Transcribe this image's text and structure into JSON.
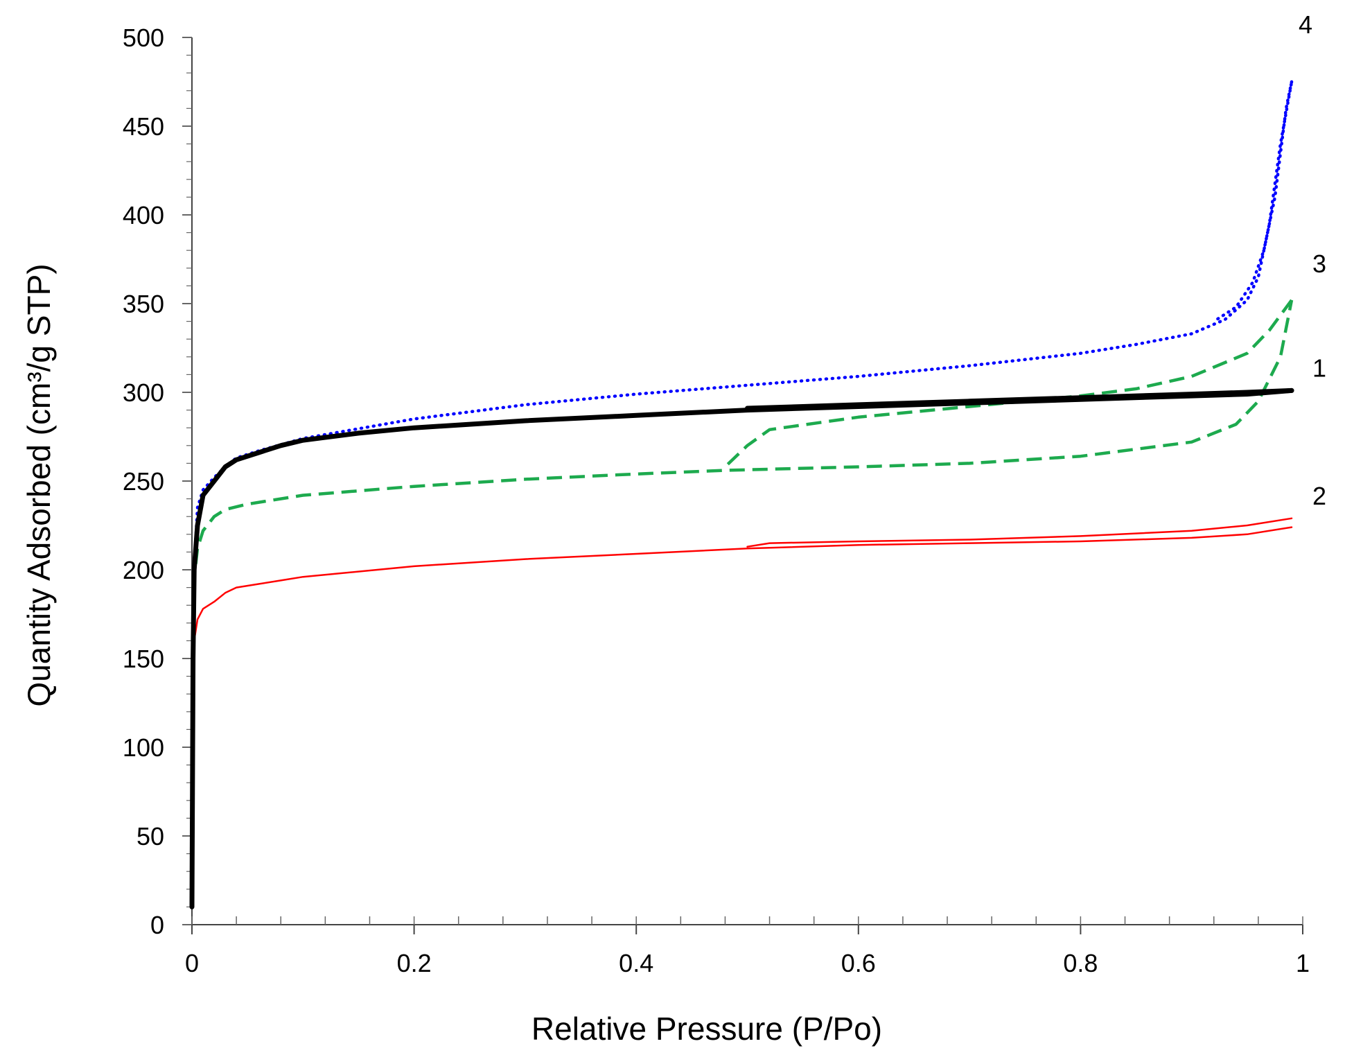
{
  "chart_data": {
    "type": "line",
    "title": "",
    "xlabel": "Relative Pressure (P/Po)",
    "ylabel": "Quantity Adsorbed (cm³/g STP)",
    "xlim": [
      0,
      1
    ],
    "ylim": [
      0,
      500
    ],
    "xticks": [
      0,
      0.2,
      0.4,
      0.6,
      0.8,
      1
    ],
    "xtick_labels": [
      "0",
      "0.2",
      "0.4",
      "0.6",
      "0.8",
      "1"
    ],
    "yticks": [
      0,
      50,
      100,
      150,
      200,
      250,
      300,
      350,
      400,
      450,
      500
    ],
    "ytick_labels": [
      "0",
      "50",
      "100",
      "150",
      "200",
      "250",
      "300",
      "350",
      "400",
      "450",
      "500"
    ],
    "x_minor_step": 0.04,
    "y_minor_step": 10,
    "grid": false,
    "legend": "none",
    "series": [
      {
        "name": "1",
        "label": "1",
        "color": "#000000",
        "style": "solid-thick",
        "adsorption": [
          [
            0.0,
            10
          ],
          [
            0.001,
            150
          ],
          [
            0.002,
            200
          ],
          [
            0.005,
            225
          ],
          [
            0.01,
            242
          ],
          [
            0.02,
            250
          ],
          [
            0.03,
            258
          ],
          [
            0.04,
            262
          ],
          [
            0.06,
            266
          ],
          [
            0.08,
            270
          ],
          [
            0.1,
            273
          ],
          [
            0.15,
            277
          ],
          [
            0.2,
            280
          ],
          [
            0.3,
            284
          ],
          [
            0.4,
            287
          ],
          [
            0.5,
            290
          ],
          [
            0.6,
            292
          ],
          [
            0.7,
            294
          ],
          [
            0.8,
            296
          ],
          [
            0.9,
            298
          ],
          [
            0.95,
            299
          ],
          [
            0.99,
            301
          ]
        ],
        "desorption": [
          [
            0.99,
            301
          ],
          [
            0.95,
            300
          ],
          [
            0.9,
            299
          ],
          [
            0.8,
            297
          ],
          [
            0.7,
            295
          ],
          [
            0.6,
            293
          ],
          [
            0.55,
            292
          ],
          [
            0.5,
            291
          ]
        ]
      },
      {
        "name": "2",
        "label": "2",
        "color": "#ff0000",
        "style": "solid-thin",
        "adsorption": [
          [
            0.0,
            10
          ],
          [
            0.001,
            120
          ],
          [
            0.002,
            160
          ],
          [
            0.005,
            172
          ],
          [
            0.01,
            178
          ],
          [
            0.02,
            182
          ],
          [
            0.03,
            187
          ],
          [
            0.04,
            190
          ],
          [
            0.06,
            192
          ],
          [
            0.08,
            194
          ],
          [
            0.1,
            196
          ],
          [
            0.2,
            202
          ],
          [
            0.3,
            206
          ],
          [
            0.4,
            209
          ],
          [
            0.5,
            212
          ],
          [
            0.6,
            214
          ],
          [
            0.7,
            215
          ],
          [
            0.8,
            216
          ],
          [
            0.9,
            218
          ],
          [
            0.95,
            220
          ],
          [
            0.99,
            224
          ]
        ],
        "desorption": [
          [
            0.99,
            229
          ],
          [
            0.95,
            225
          ],
          [
            0.9,
            222
          ],
          [
            0.8,
            219
          ],
          [
            0.7,
            217
          ],
          [
            0.6,
            216
          ],
          [
            0.52,
            215
          ],
          [
            0.5,
            213
          ]
        ]
      },
      {
        "name": "3",
        "label": "3",
        "color": "#1daa4e",
        "style": "dashed",
        "adsorption": [
          [
            0.0,
            10
          ],
          [
            0.001,
            150
          ],
          [
            0.002,
            195
          ],
          [
            0.005,
            212
          ],
          [
            0.01,
            222
          ],
          [
            0.02,
            230
          ],
          [
            0.03,
            234
          ],
          [
            0.05,
            237
          ],
          [
            0.1,
            242
          ],
          [
            0.2,
            247
          ],
          [
            0.3,
            251
          ],
          [
            0.4,
            254
          ],
          [
            0.48,
            256
          ],
          [
            0.6,
            258
          ],
          [
            0.7,
            260
          ],
          [
            0.8,
            264
          ],
          [
            0.9,
            272
          ],
          [
            0.94,
            282
          ],
          [
            0.96,
            295
          ],
          [
            0.98,
            320
          ],
          [
            0.99,
            352
          ]
        ],
        "desorption": [
          [
            0.99,
            352
          ],
          [
            0.97,
            335
          ],
          [
            0.95,
            322
          ],
          [
            0.9,
            309
          ],
          [
            0.85,
            302
          ],
          [
            0.8,
            298
          ],
          [
            0.7,
            292
          ],
          [
            0.6,
            286
          ],
          [
            0.52,
            279
          ],
          [
            0.5,
            270
          ],
          [
            0.48,
            258
          ]
        ]
      },
      {
        "name": "4",
        "label": "4",
        "color": "#0000ff",
        "style": "dotted",
        "adsorption": [
          [
            0.0,
            10
          ],
          [
            0.001,
            150
          ],
          [
            0.002,
            200
          ],
          [
            0.005,
            235
          ],
          [
            0.01,
            245
          ],
          [
            0.02,
            252
          ],
          [
            0.03,
            258
          ],
          [
            0.04,
            263
          ],
          [
            0.06,
            267
          ],
          [
            0.1,
            274
          ],
          [
            0.2,
            285
          ],
          [
            0.3,
            293
          ],
          [
            0.4,
            299
          ],
          [
            0.5,
            304
          ],
          [
            0.6,
            309
          ],
          [
            0.7,
            315
          ],
          [
            0.8,
            322
          ],
          [
            0.85,
            327
          ],
          [
            0.9,
            333
          ],
          [
            0.93,
            341
          ],
          [
            0.95,
            352
          ],
          [
            0.96,
            365
          ],
          [
            0.97,
            395
          ],
          [
            0.98,
            440
          ],
          [
            0.99,
            475
          ]
        ],
        "desorption": [
          [
            0.99,
            475
          ],
          [
            0.985,
            460
          ],
          [
            0.975,
            410
          ],
          [
            0.965,
            380
          ],
          [
            0.955,
            362
          ],
          [
            0.94,
            348
          ],
          [
            0.92,
            340
          ]
        ]
      }
    ]
  }
}
